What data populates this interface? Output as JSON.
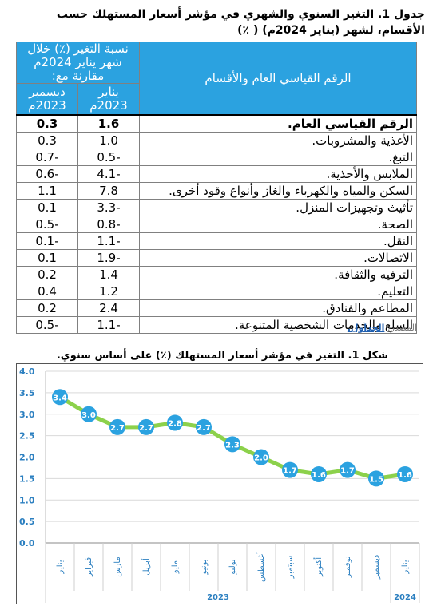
{
  "table_title": "جدول 1. التغير السنوي والشهري في مؤشر أسعار المستهلك حسب الأقسام، لشهر (يناير 2024م) ( ٪)",
  "table": {
    "header_category": "الرقم القياسي العام والأقسام",
    "header_change": "نسبة التغير (٪) خلال شهر يناير 2024م مقارنة مع:",
    "header_jan": "يناير 2023م",
    "header_dec": "ديسمبر 2023م",
    "rows": [
      {
        "name": "الرقم القياسي العام.",
        "jan": "1.6",
        "dec": "0.3"
      },
      {
        "name": "الأغذية والمشروبات.",
        "jan": "1.0",
        "dec": "0.3"
      },
      {
        "name": "التبغ.",
        "jan": "-0.5",
        "dec": "-0.7"
      },
      {
        "name": "الملابس والأحذية.",
        "jan": "-4.1",
        "dec": "-0.6"
      },
      {
        "name": "السكن والمياه والكهرباء والغاز وأنواع وقود أخرى.",
        "jan": "7.8",
        "dec": "1.1"
      },
      {
        "name": "تأثيث وتجهيزات المنزل.",
        "jan": "-3.3",
        "dec": "0.1"
      },
      {
        "name": "الصحة.",
        "jan": "-0.8",
        "dec": "-0.5"
      },
      {
        "name": "النقل.",
        "jan": "-1.1",
        "dec": "-0.1"
      },
      {
        "name": "الاتصالات.",
        "jan": "-1.9",
        "dec": "0.1"
      },
      {
        "name": "الترفيه والثقافة.",
        "jan": "1.4",
        "dec": "0.2"
      },
      {
        "name": "التعليم.",
        "jan": "1.2",
        "dec": "0.4"
      },
      {
        "name": "المطاعم والفنادق.",
        "jan": "2.4",
        "dec": "0.2"
      },
      {
        "name": "السلع والخدمات الشخصية المتنوعة.",
        "jan": "-1.1",
        "dec": "-0.5"
      }
    ]
  },
  "source": {
    "label": "المصدر:",
    "link": "الجداول."
  },
  "chart_title": "شكل 1. التغير في مؤشر أسعار المستهلك (٪) على أساس سنوي.",
  "chart_data": {
    "type": "line",
    "categories": [
      "يناير",
      "فبراير",
      "مارس",
      "أبريل",
      "مايو",
      "يونيو",
      "يوليو",
      "أغسطس",
      "سبتمبر",
      "أكتوبر",
      "نوفمبر",
      "ديسمبر",
      "يناير"
    ],
    "values": [
      3.4,
      3.0,
      2.7,
      2.7,
      2.8,
      2.7,
      2.3,
      2.0,
      1.7,
      1.6,
      1.7,
      1.5,
      1.6
    ],
    "data_labels": [
      "3.4",
      "3.0",
      "2.7",
      "2.7",
      "2.8",
      "2.7",
      "2.3",
      "2.0",
      "1.7",
      "1.6",
      "1.7",
      "1.5",
      "1.6"
    ],
    "year_groups": [
      {
        "label": "2023",
        "count": 12
      },
      {
        "label": "2024",
        "count": 1
      }
    ],
    "yticks": [
      "0.0",
      "0.5",
      "1.0",
      "1.5",
      "2.0",
      "2.5",
      "3.0",
      "3.5",
      "4.0"
    ],
    "ylim": [
      0,
      4
    ],
    "line_color": "#8CD14B",
    "marker_color": "#2BA2E0",
    "grid": true
  }
}
